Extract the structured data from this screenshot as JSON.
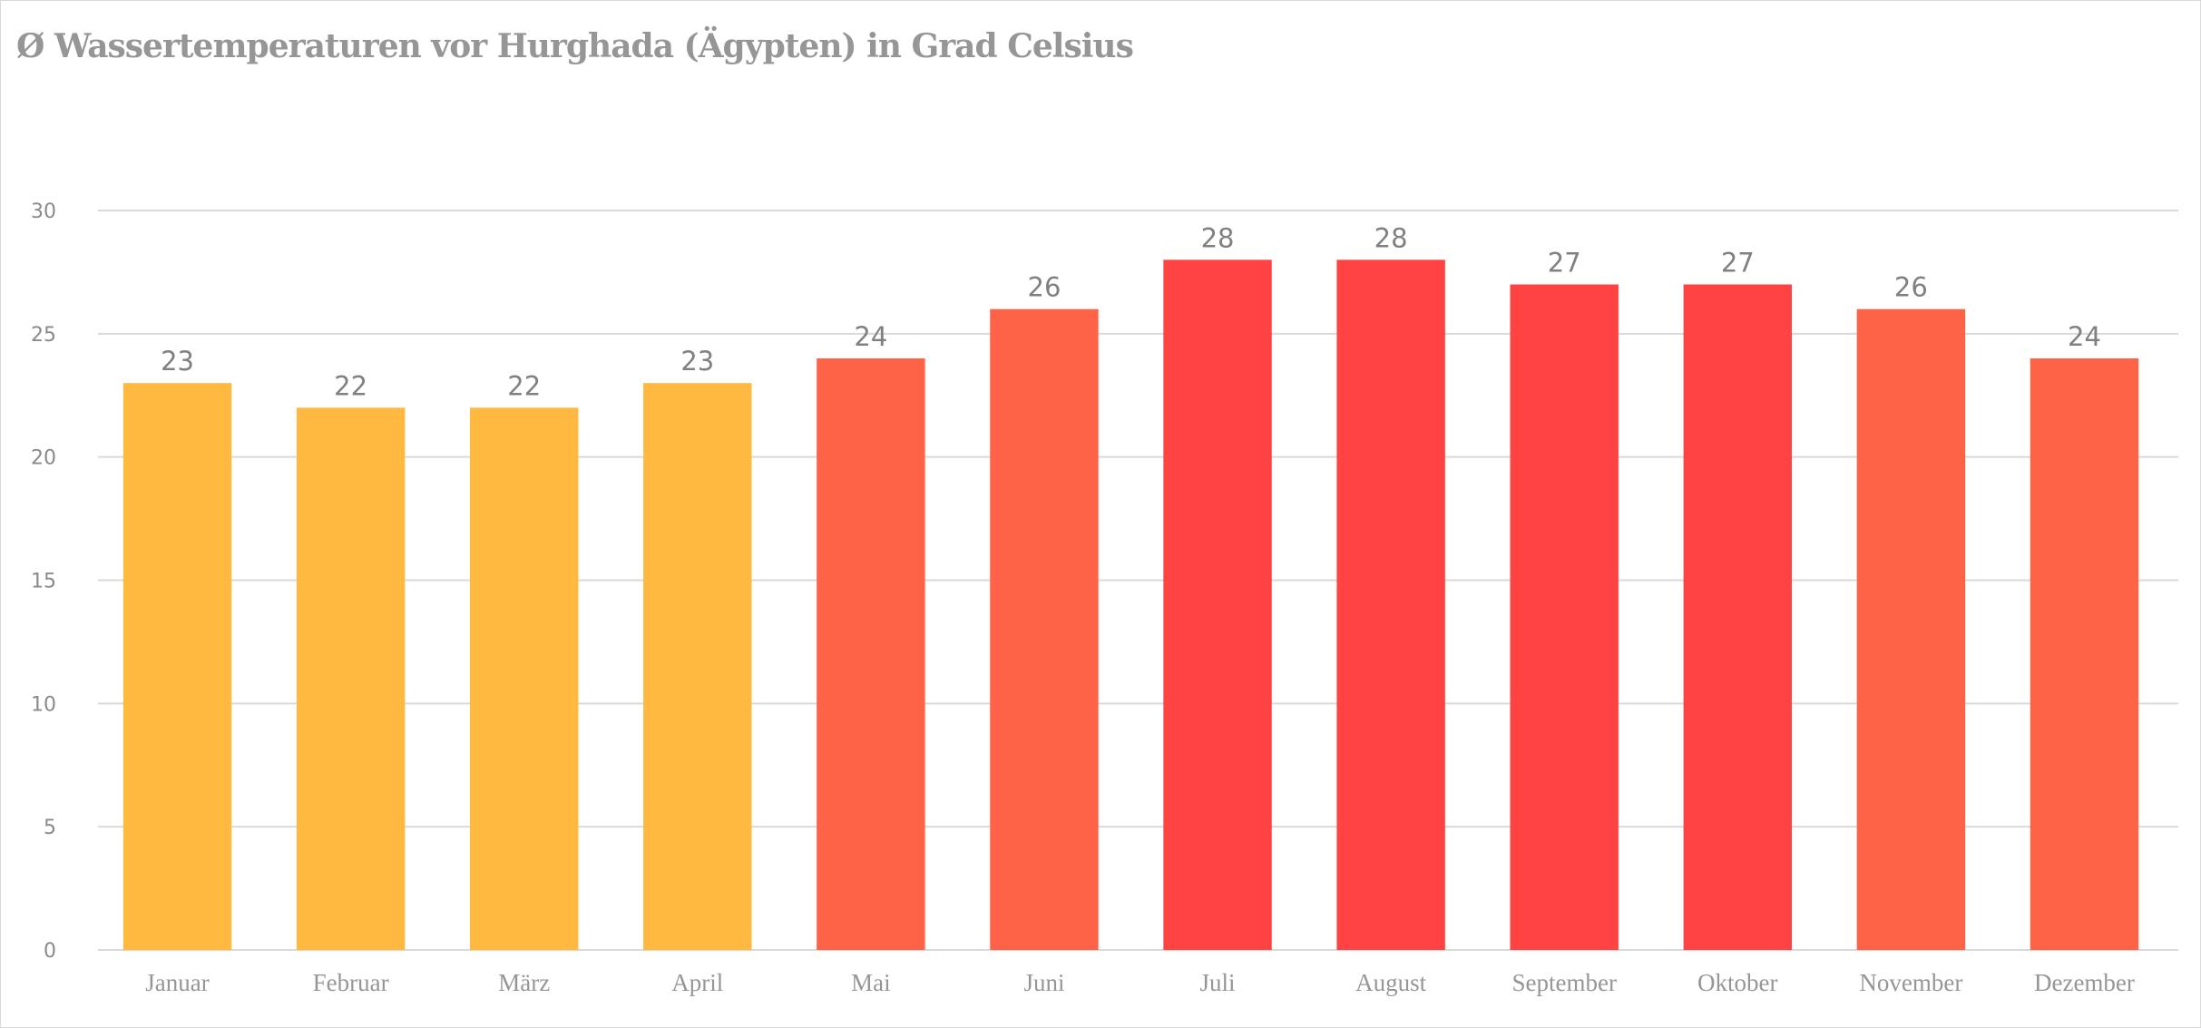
{
  "chart_data": {
    "type": "bar",
    "title": "Ø Wassertemperaturen vor Hurghada (Ägypten) in Grad Celsius",
    "categories": [
      "Januar",
      "Februar",
      "März",
      "April",
      "Mai",
      "Juni",
      "Juli",
      "August",
      "September",
      "Oktober",
      "November",
      "Dezember"
    ],
    "values": [
      23,
      22,
      22,
      23,
      24,
      26,
      28,
      28,
      27,
      27,
      26,
      24
    ],
    "bar_colors": [
      "#FFB940",
      "#FFB940",
      "#FFB940",
      "#FFB940",
      "#FF6347",
      "#FF6347",
      "#FF4343",
      "#FF4343",
      "#FF4343",
      "#FF4343",
      "#FF6347",
      "#FF6347"
    ],
    "xlabel": "",
    "ylabel": "",
    "ylim": [
      0,
      30
    ],
    "yticks": [
      0,
      5,
      10,
      15,
      20,
      25,
      30
    ],
    "grid": true,
    "data_labels": true,
    "legend": "none"
  }
}
